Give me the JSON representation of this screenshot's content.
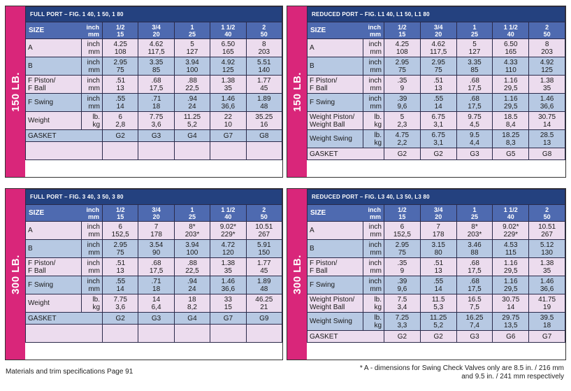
{
  "blocks": [
    {
      "pressure": "150 LB.",
      "panels": [
        {
          "title": "FULL PORT – FIG. 1 40, 1 50, 1 80",
          "size_label": "SIZE",
          "unit_top": "inch",
          "unit_bottom": "mm",
          "sizes": [
            [
              "1/2",
              "15"
            ],
            [
              "3/4",
              "20"
            ],
            [
              "1",
              "25"
            ],
            [
              "1 1/2",
              "40"
            ],
            [
              "2",
              "50"
            ]
          ],
          "rows": [
            {
              "label": [
                "A"
              ],
              "units": [
                "inch",
                "mm"
              ],
              "values": [
                [
                  "4.25",
                  "108"
                ],
                [
                  "4.62",
                  "117,5"
                ],
                [
                  "5",
                  "127"
                ],
                [
                  "6.50",
                  "165"
                ],
                [
                  "8",
                  "203"
                ]
              ]
            },
            {
              "label": [
                "B"
              ],
              "units": [
                "inch",
                "mm"
              ],
              "values": [
                [
                  "2.95",
                  "75"
                ],
                [
                  "3.35",
                  "85"
                ],
                [
                  "3.94",
                  "100"
                ],
                [
                  "4.92",
                  "125"
                ],
                [
                  "5.51",
                  "140"
                ]
              ]
            },
            {
              "label": [
                "F Piston/",
                "F Ball"
              ],
              "units": [
                "inch",
                "mm"
              ],
              "values": [
                [
                  ".51",
                  "13"
                ],
                [
                  ".68",
                  "17,5"
                ],
                [
                  ".88",
                  "22,5"
                ],
                [
                  "1.38",
                  "35"
                ],
                [
                  "1.77",
                  "45"
                ]
              ]
            },
            {
              "label": [
                "F Swing"
              ],
              "units": [
                "inch",
                "mm"
              ],
              "values": [
                [
                  ".55",
                  "14"
                ],
                [
                  ".71",
                  "18"
                ],
                [
                  ".94",
                  "24"
                ],
                [
                  "1.46",
                  "36,6"
                ],
                [
                  "1.89",
                  "48"
                ]
              ]
            },
            {
              "label": [
                "Weight"
              ],
              "units": [
                "lb.",
                "kg"
              ],
              "values": [
                [
                  "6",
                  "2,8"
                ],
                [
                  "7.75",
                  "3,6"
                ],
                [
                  "11.25",
                  "5,2"
                ],
                [
                  "22",
                  "10"
                ],
                [
                  "35.25",
                  "16"
                ]
              ]
            }
          ],
          "gasket": {
            "label": "GASKET",
            "values": [
              "G2",
              "G3",
              "G4",
              "G7",
              "G8"
            ]
          }
        },
        {
          "title": "REDUCED PORT – FIG. L1 40, L1 50, L1 80",
          "size_label": "SIZE",
          "unit_top": "inch",
          "unit_bottom": "mm",
          "sizes": [
            [
              "1/2",
              "15"
            ],
            [
              "3/4",
              "20"
            ],
            [
              "1",
              "25"
            ],
            [
              "1 1/2",
              "40"
            ],
            [
              "2",
              "50"
            ]
          ],
          "rows": [
            {
              "label": [
                "A"
              ],
              "units": [
                "inch",
                "mm"
              ],
              "values": [
                [
                  "4.25",
                  "108"
                ],
                [
                  "4.62",
                  "117,5"
                ],
                [
                  "5",
                  "127"
                ],
                [
                  "6.50",
                  "165"
                ],
                [
                  "8",
                  "203"
                ]
              ]
            },
            {
              "label": [
                "B"
              ],
              "units": [
                "inch",
                "mm"
              ],
              "values": [
                [
                  "2.95",
                  "75"
                ],
                [
                  "2.95",
                  "75"
                ],
                [
                  "3.35",
                  "85"
                ],
                [
                  "4.33",
                  "110"
                ],
                [
                  "4.92",
                  "125"
                ]
              ]
            },
            {
              "label": [
                "F Piston/",
                "F Ball"
              ],
              "units": [
                "inch",
                "mm"
              ],
              "values": [
                [
                  ".35",
                  "9"
                ],
                [
                  ".51",
                  "13"
                ],
                [
                  ".68",
                  "17,5"
                ],
                [
                  "1.16",
                  "29,5"
                ],
                [
                  "1.38",
                  "35"
                ]
              ]
            },
            {
              "label": [
                "F Swing"
              ],
              "units": [
                "inch",
                "mm"
              ],
              "values": [
                [
                  ".39",
                  "9,6"
                ],
                [
                  ".55",
                  "14"
                ],
                [
                  ".68",
                  "17,5"
                ],
                [
                  "1.16",
                  "29,5"
                ],
                [
                  "1.46",
                  "36,6"
                ]
              ]
            },
            {
              "label": [
                "Weight Piston/",
                "Weight Ball"
              ],
              "units": [
                "lb.",
                "kg"
              ],
              "values": [
                [
                  "5",
                  "2,3"
                ],
                [
                  "6.75",
                  "3,1"
                ],
                [
                  "9.75",
                  "4,5"
                ],
                [
                  "18.5",
                  "8,4"
                ],
                [
                  "30.75",
                  "14"
                ]
              ]
            },
            {
              "label": [
                "Weight Swing"
              ],
              "units": [
                "lb.",
                "kg"
              ],
              "values": [
                [
                  "4.75",
                  "2,2"
                ],
                [
                  "6.75",
                  "3,1"
                ],
                [
                  "9.5",
                  "4,4"
                ],
                [
                  "18.25",
                  "8,3"
                ],
                [
                  "28.5",
                  "13"
                ]
              ]
            }
          ],
          "gasket": {
            "label": "GASKET",
            "values": [
              "G2",
              "G2",
              "G3",
              "G5",
              "G8"
            ]
          }
        }
      ]
    },
    {
      "pressure": "300 LB.",
      "panels": [
        {
          "title": "FULL PORT – FIG. 3 40, 3 50, 3 80",
          "size_label": "SIZE",
          "unit_top": "inch",
          "unit_bottom": "mm",
          "sizes": [
            [
              "1/2",
              "15"
            ],
            [
              "3/4",
              "20"
            ],
            [
              "1",
              "25"
            ],
            [
              "1 1/2",
              "40"
            ],
            [
              "2",
              "50"
            ]
          ],
          "rows": [
            {
              "label": [
                "A"
              ],
              "units": [
                "inch",
                "mm"
              ],
              "values": [
                [
                  "6",
                  "152,5"
                ],
                [
                  "7",
                  "178"
                ],
                [
                  "8*",
                  "203*"
                ],
                [
                  "9.02*",
                  "229*"
                ],
                [
                  "10.51",
                  "267"
                ]
              ]
            },
            {
              "label": [
                "B"
              ],
              "units": [
                "inch",
                "mm"
              ],
              "values": [
                [
                  "2.95",
                  "75"
                ],
                [
                  "3.54",
                  "90"
                ],
                [
                  "3.94",
                  "100"
                ],
                [
                  "4.72",
                  "120"
                ],
                [
                  "5.91",
                  "150"
                ]
              ]
            },
            {
              "label": [
                "F Piston/",
                "F Ball"
              ],
              "units": [
                "inch",
                "mm"
              ],
              "values": [
                [
                  ".51",
                  "13"
                ],
                [
                  ".68",
                  "17,5"
                ],
                [
                  ".88",
                  "22,5"
                ],
                [
                  "1.38",
                  "35"
                ],
                [
                  "1.77",
                  "45"
                ]
              ]
            },
            {
              "label": [
                "F Swing"
              ],
              "units": [
                "inch",
                "mm"
              ],
              "values": [
                [
                  ".55",
                  "14"
                ],
                [
                  ".71",
                  "18"
                ],
                [
                  ".94",
                  "24"
                ],
                [
                  "1.46",
                  "36,6"
                ],
                [
                  "1.89",
                  "48"
                ]
              ]
            },
            {
              "label": [
                "Weight"
              ],
              "units": [
                "lb.",
                "kg"
              ],
              "values": [
                [
                  "7.75",
                  "3,6"
                ],
                [
                  "14",
                  "6,4"
                ],
                [
                  "18",
                  "8,2"
                ],
                [
                  "33",
                  "15"
                ],
                [
                  "46.25",
                  "21"
                ]
              ]
            }
          ],
          "gasket": {
            "label": "GASKET",
            "values": [
              "G2",
              "G3",
              "G4",
              "G7",
              "G9"
            ]
          }
        },
        {
          "title": "REDUCED PORT – FIG. L3 40, L3 50, L3 80",
          "size_label": "SIZE",
          "unit_top": "inch",
          "unit_bottom": "mm",
          "sizes": [
            [
              "1/2",
              "15"
            ],
            [
              "3/4",
              "20"
            ],
            [
              "1",
              "25"
            ],
            [
              "1 1/2",
              "40"
            ],
            [
              "2",
              "50"
            ]
          ],
          "rows": [
            {
              "label": [
                "A"
              ],
              "units": [
                "inch",
                "mm"
              ],
              "values": [
                [
                  "6",
                  "152,5"
                ],
                [
                  "7",
                  "178"
                ],
                [
                  "8*",
                  "203*"
                ],
                [
                  "9.02*",
                  "229*"
                ],
                [
                  "10.51",
                  "267"
                ]
              ]
            },
            {
              "label": [
                "B"
              ],
              "units": [
                "inch",
                "mm"
              ],
              "values": [
                [
                  "2.95",
                  "75"
                ],
                [
                  "3.15",
                  "80"
                ],
                [
                  "3.46",
                  "88"
                ],
                [
                  "4.53",
                  "115"
                ],
                [
                  "5.12",
                  "130"
                ]
              ]
            },
            {
              "label": [
                "F Piston/",
                "F Ball"
              ],
              "units": [
                "inch",
                "mm"
              ],
              "values": [
                [
                  ".35",
                  "9"
                ],
                [
                  ".51",
                  "13"
                ],
                [
                  ".68",
                  "17,5"
                ],
                [
                  "1.16",
                  "29,5"
                ],
                [
                  "1.38",
                  "35"
                ]
              ]
            },
            {
              "label": [
                "F Swing"
              ],
              "units": [
                "inch",
                "mm"
              ],
              "values": [
                [
                  ".39",
                  "9,6"
                ],
                [
                  ".55",
                  "14"
                ],
                [
                  ".68",
                  "17,5"
                ],
                [
                  "1.16",
                  "29,5"
                ],
                [
                  "1.46",
                  "36,6"
                ]
              ]
            },
            {
              "label": [
                "Weight Piston/",
                "Weight Ball"
              ],
              "units": [
                "lb.",
                "kg"
              ],
              "values": [
                [
                  "7.5",
                  "3,4"
                ],
                [
                  "11.5",
                  "5,3"
                ],
                [
                  "16.5",
                  "7,5"
                ],
                [
                  "30.75",
                  "14"
                ],
                [
                  "41.75",
                  "19"
                ]
              ]
            },
            {
              "label": [
                "Weight Swing"
              ],
              "units": [
                "lb.",
                "kg"
              ],
              "values": [
                [
                  "7.25",
                  "3,3"
                ],
                [
                  "11.25",
                  "5,2"
                ],
                [
                  "16.25",
                  "7,4"
                ],
                [
                  "29.75",
                  "13,5"
                ],
                [
                  "39.5",
                  "18"
                ]
              ]
            }
          ],
          "gasket": {
            "label": "GASKET",
            "values": [
              "G2",
              "G2",
              "G3",
              "G6",
              "G7"
            ]
          }
        }
      ]
    }
  ],
  "footer": {
    "left": "Materials and trim specifications Page 91",
    "right_line1": "* A - dimensions for Swing Check Valves only are 8.5 in. / 216 mm",
    "right_line2": "and 9.5 in. / 241 mm respectively"
  }
}
